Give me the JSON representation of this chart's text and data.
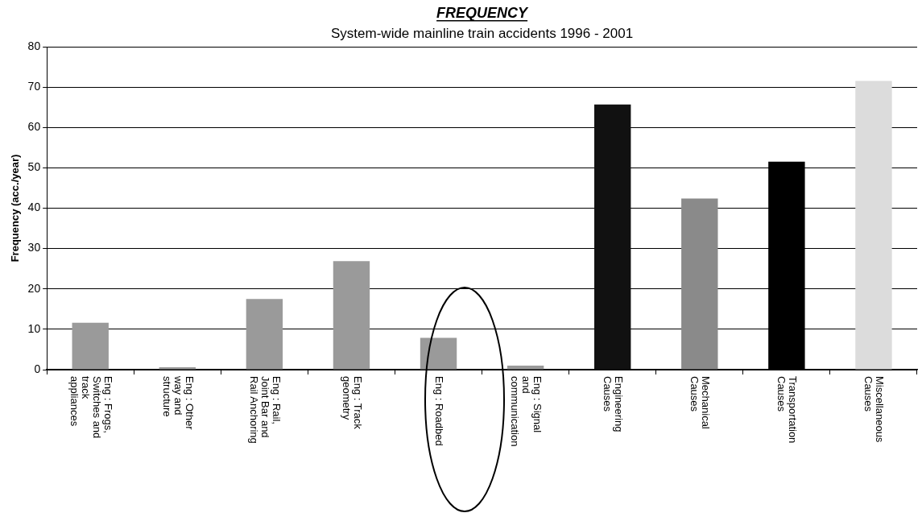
{
  "chart_data": {
    "type": "bar",
    "title": "FREQUENCY",
    "subtitle": "System-wide mainline train accidents 1996 - 2001",
    "ylabel": "Frequency (acc./year)",
    "categories": [
      "Eng : Frogs, Switches and track appliances",
      "Eng : Other way and structure",
      "Eng : Rail, Joint Bar and Rail Anchoring",
      "Eng : Track geometry",
      "Eng : Roadbed",
      "Eng : Signal and communication",
      "Engineering Causes",
      "Mechanical Causes",
      "Transportation Causes",
      "Miscellaneous Causes"
    ],
    "values": [
      11.6,
      0.6,
      17.5,
      26.9,
      7.9,
      1.0,
      65.7,
      42.4,
      51.5,
      71.5
    ],
    "colors": [
      "#9a9a9a",
      "#9a9a9a",
      "#9a9a9a",
      "#9a9a9a",
      "#9a9a9a",
      "#9a9a9a",
      "#111111",
      "#8a8a8a",
      "#000000",
      "#dcdcdc"
    ],
    "ylim": [
      0,
      80
    ],
    "yticks": [
      0,
      10,
      20,
      30,
      40,
      50,
      60,
      70,
      80
    ],
    "grid": "y",
    "legend": false
  }
}
